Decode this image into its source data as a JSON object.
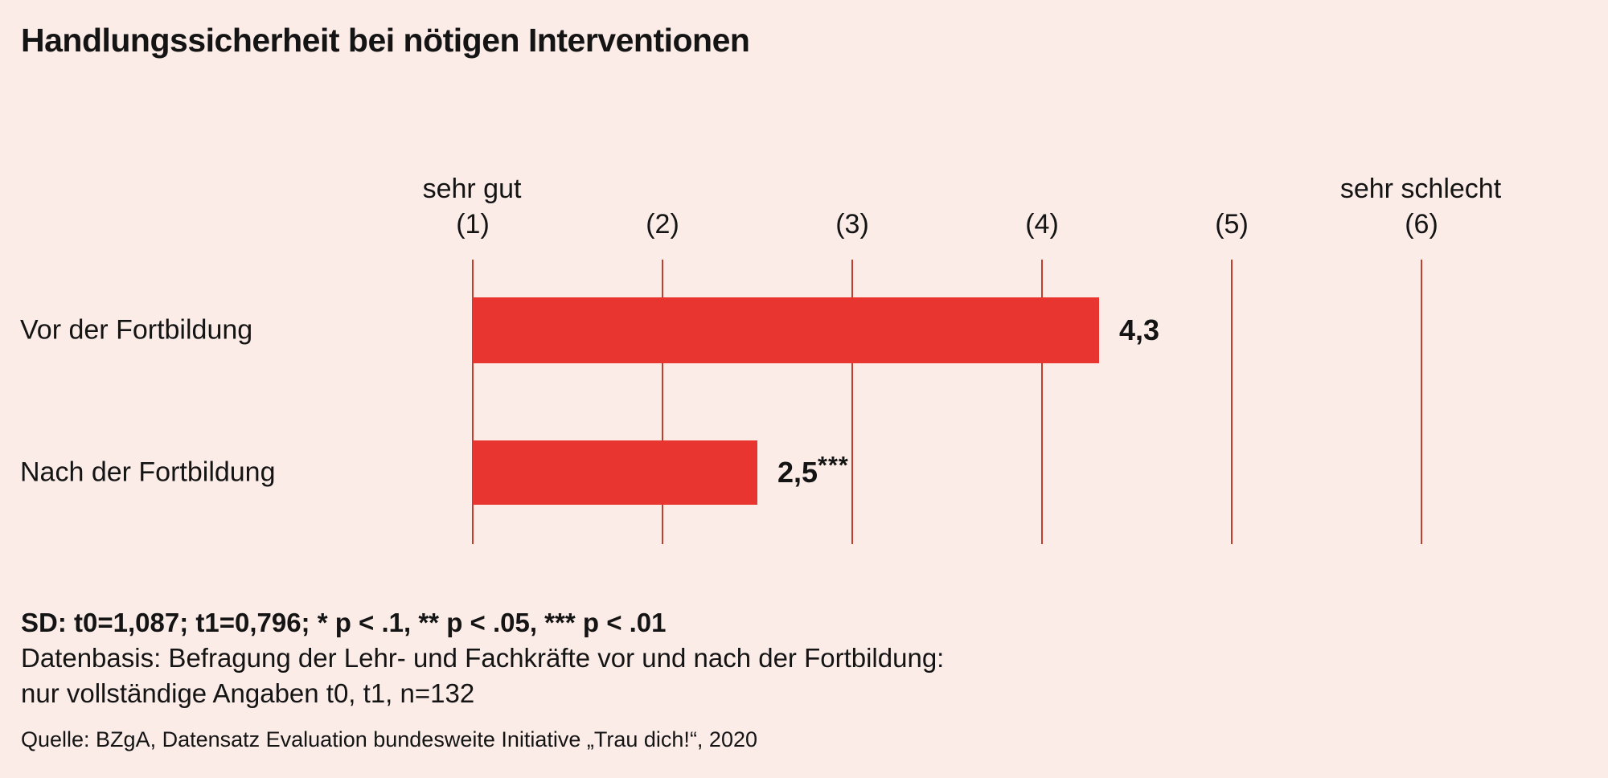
{
  "title": "Handlungssicherheit bei nötigen Interventionen",
  "scale": {
    "left_label": "sehr gut",
    "right_label": "sehr schlecht"
  },
  "chart_data": {
    "type": "bar",
    "orientation": "horizontal",
    "title": "Handlungssicherheit bei nötigen Interventionen",
    "categories": [
      "Vor der Fortbildung",
      "Nach der Fortbildung"
    ],
    "values": [
      4.3,
      2.5
    ],
    "value_labels": [
      "4,3",
      "2,5"
    ],
    "value_suffixes": [
      "",
      "***"
    ],
    "xlim": [
      1,
      6
    ],
    "x_ticks": [
      1,
      2,
      3,
      4,
      5,
      6
    ],
    "x_tick_labels": [
      "(1)",
      "(2)",
      "(3)",
      "(4)",
      "(5)",
      "(6)"
    ],
    "axis_left_endpoint_label": "sehr gut",
    "axis_right_endpoint_label": "sehr schlecht",
    "grid": "vertical-lines-on",
    "legend": "none",
    "bar_color": "#e8352f",
    "gridline_color": "#c03e2e",
    "background_color": "#fbece7",
    "text_color": "#141414"
  },
  "footnotes": {
    "sd_line": "SD: t0=1,087; t1=0,796; * p < .1, ** p < .05, *** p < .01",
    "datenbasis_line1": "Datenbasis: Befragung der Lehr- und Fachkräfte vor und nach der Fortbildung:",
    "datenbasis_line2": "nur vollständige Angaben t0, t1, n=132",
    "quelle": "Quelle: BZgA, Datensatz Evaluation bundesweite Initiative „Trau dich!“, 2020"
  }
}
